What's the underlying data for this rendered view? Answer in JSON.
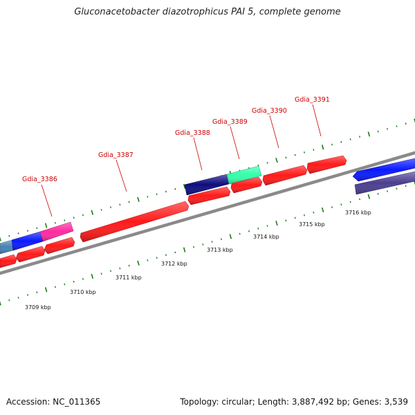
{
  "title": "Gluconacetobacter diazotrophicus PAI 5, complete genome",
  "footer": {
    "accession": "Accession: NC_011365",
    "summary": "Topology: circular; Length: 3,887,492 bp; Genes: 3,539"
  },
  "colors": {
    "backbone": "#8a8a8a",
    "tick": "#1a7a1a",
    "label": "#cc0000",
    "cds_red": "#ff1a1a",
    "navy": "#0d0d80",
    "aquamarine": "#33ffaa",
    "blue": "#0a1aff",
    "slate": "#4a3f90",
    "steel": "#4682b4",
    "magenta": "#ff2aa0"
  },
  "tick_labels": [
    "3709 kbp",
    "3710 kbp",
    "3711 kbp",
    "3712 kbp",
    "3713 kbp",
    "3714 kbp",
    "3715 kbp",
    "3716 kbp"
  ],
  "gene_labels": [
    "Gdia_3386",
    "Gdia_3387",
    "Gdia_3388",
    "Gdia_3389",
    "Gdia_3390",
    "Gdia_3391"
  ]
}
